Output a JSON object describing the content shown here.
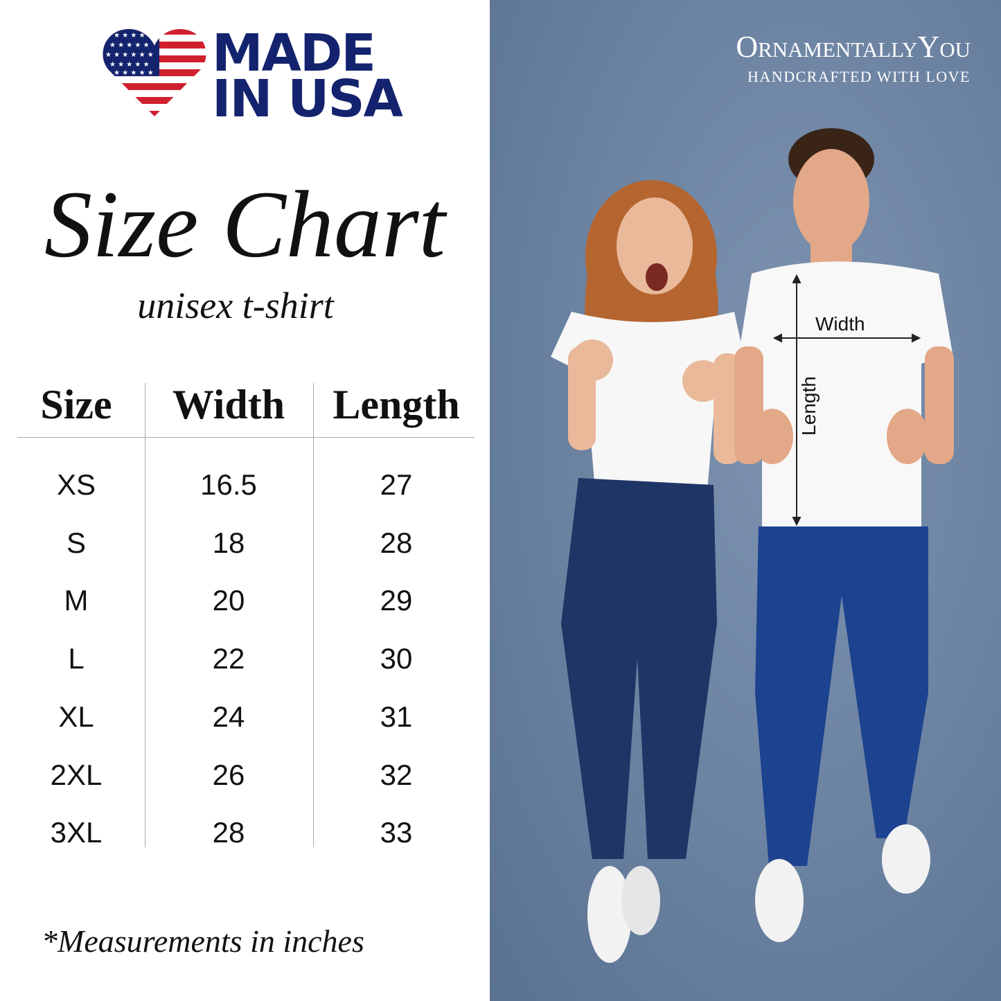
{
  "badge": {
    "line1": "MADE",
    "line2": "IN USA",
    "flag_colors": {
      "blue": "#14236e",
      "red": "#d0202e"
    }
  },
  "title": "Size Chart",
  "subtitle": "unisex t-shirt",
  "table": {
    "headers": [
      "Size",
      "Width",
      "Length"
    ],
    "rows": [
      [
        "XS",
        "16.5",
        "27"
      ],
      [
        "S",
        "18",
        "28"
      ],
      [
        "M",
        "20",
        "29"
      ],
      [
        "L",
        "22",
        "30"
      ],
      [
        "XL",
        "24",
        "31"
      ],
      [
        "2XL",
        "26",
        "32"
      ],
      [
        "3XL",
        "28",
        "33"
      ]
    ]
  },
  "footnote": "*Measurements in inches",
  "brand": {
    "name": "OrnamentallyYou",
    "tagline": "HANDCRAFTED WITH LOVE"
  },
  "photo": {
    "width_label": "Width",
    "length_label": "Length",
    "background": "#6a81a0"
  }
}
